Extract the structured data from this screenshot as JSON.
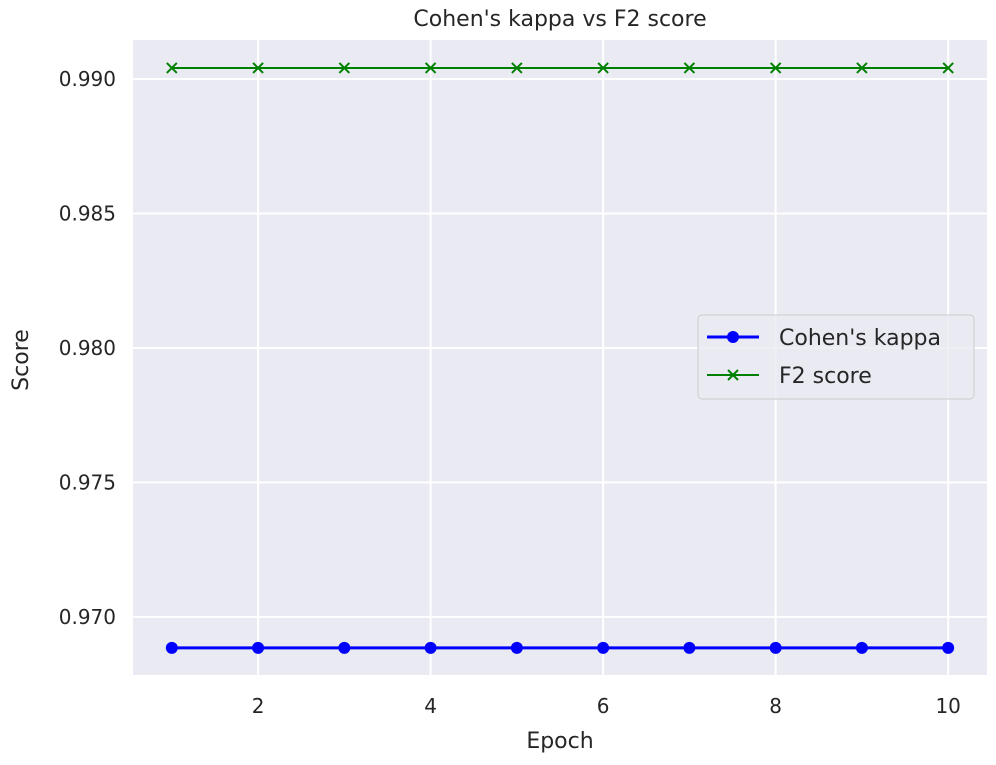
{
  "chart_data": {
    "type": "line",
    "title": "Cohen's kappa vs F2 score",
    "xlabel": "Epoch",
    "ylabel": "Score",
    "x": [
      1,
      2,
      3,
      4,
      5,
      6,
      7,
      8,
      9,
      10
    ],
    "xticks": [
      2,
      4,
      6,
      8,
      10
    ],
    "yticks": [
      0.97,
      0.975,
      0.98,
      0.985,
      0.99
    ],
    "ytick_labels": [
      "0.970",
      "0.975",
      "0.980",
      "0.985",
      "0.990"
    ],
    "xlim": [
      0.55,
      10.45
    ],
    "ylim": [
      0.96784,
      0.99145
    ],
    "grid": true,
    "legend_position": "center-right",
    "series": [
      {
        "name": "Cohen's kappa",
        "color": "#0000ff",
        "marker": "circle",
        "values": [
          0.96885,
          0.96885,
          0.96885,
          0.96885,
          0.96885,
          0.96885,
          0.96885,
          0.96885,
          0.96885,
          0.96885
        ]
      },
      {
        "name": "F2 score",
        "color": "#008000",
        "marker": "x",
        "values": [
          0.99041,
          0.99041,
          0.99041,
          0.99041,
          0.99041,
          0.99041,
          0.99041,
          0.99041,
          0.99041,
          0.99041
        ]
      }
    ]
  }
}
